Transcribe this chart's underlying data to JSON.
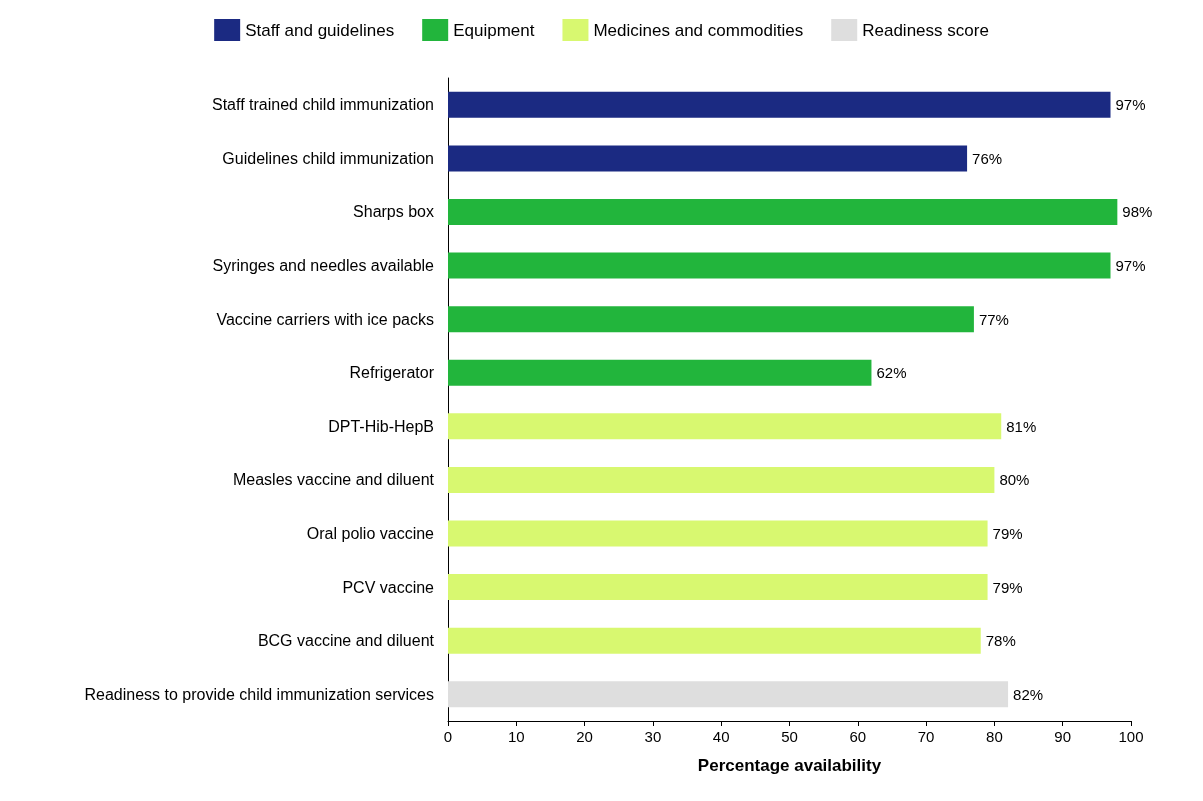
{
  "chart_data": {
    "type": "bar",
    "orientation": "horizontal",
    "xlabel": "Percentage availability",
    "categories": [
      "Staff trained child immunization",
      "Guidelines child immunization",
      "Sharps box",
      "Syringes and needles available",
      "Vaccine carriers with ice packs",
      "Refrigerator",
      "DPT-Hib-HepB",
      "Measles vaccine and diluent",
      "Oral polio vaccine",
      "PCV vaccine",
      "BCG vaccine and diluent",
      "Readiness to provide child immunization services"
    ],
    "series": [
      {
        "name": "Staff and guidelines",
        "color": "#1b2a82",
        "values": [
          97,
          76,
          null,
          null,
          null,
          null,
          null,
          null,
          null,
          null,
          null,
          null
        ],
        "value_labels": [
          "97%",
          "76%",
          null,
          null,
          null,
          null,
          null,
          null,
          null,
          null,
          null,
          null
        ]
      },
      {
        "name": "Equipment",
        "color": "#22b53c",
        "values": [
          null,
          null,
          98,
          97,
          77,
          62,
          null,
          null,
          null,
          null,
          null,
          null
        ],
        "value_labels": [
          null,
          null,
          "98%",
          "97%",
          "77%",
          "62%",
          null,
          null,
          null,
          null,
          null,
          null
        ]
      },
      {
        "name": "Medicines and commodities",
        "color": "#d8f870",
        "values": [
          null,
          null,
          null,
          null,
          null,
          null,
          81,
          80,
          79,
          79,
          78,
          null
        ],
        "value_labels": [
          null,
          null,
          null,
          null,
          null,
          null,
          "81%",
          "80%",
          "79%",
          "79%",
          "78%",
          null
        ]
      },
      {
        "name": "Readiness score",
        "color": "#dedede",
        "values": [
          null,
          null,
          null,
          null,
          null,
          null,
          null,
          null,
          null,
          null,
          null,
          82
        ],
        "value_labels": [
          null,
          null,
          null,
          null,
          null,
          null,
          null,
          null,
          null,
          null,
          null,
          "82%"
        ]
      }
    ],
    "xlim": [
      0,
      100
    ],
    "xticks": [
      0,
      10,
      20,
      30,
      40,
      50,
      60,
      70,
      80,
      90,
      100
    ],
    "grid": false,
    "legend": "top"
  }
}
